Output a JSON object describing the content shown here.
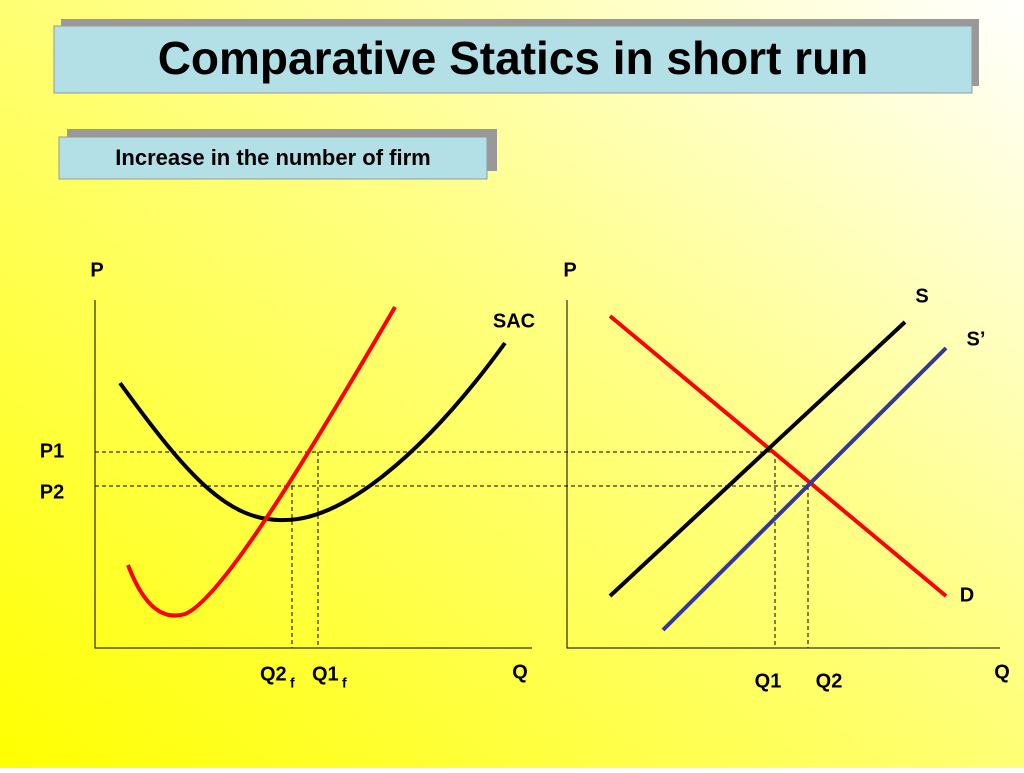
{
  "header": {
    "title": "Comparative Statics in short run",
    "subtitle": "Increase in the number of firm"
  },
  "firm_graph": {
    "y_axis": "P",
    "x_axis": "Q",
    "price_1": "P1",
    "price_2": "P2",
    "curve": "SAC",
    "q2": {
      "main": "Q2",
      "sub": "f"
    },
    "q1": {
      "main": "Q1",
      "sub": "f"
    }
  },
  "market_graph": {
    "y_axis": "P",
    "x_axis": "Q",
    "supply": "S",
    "supply_new": "S’",
    "demand": "D",
    "q1": "Q1",
    "q2": "Q2"
  }
}
